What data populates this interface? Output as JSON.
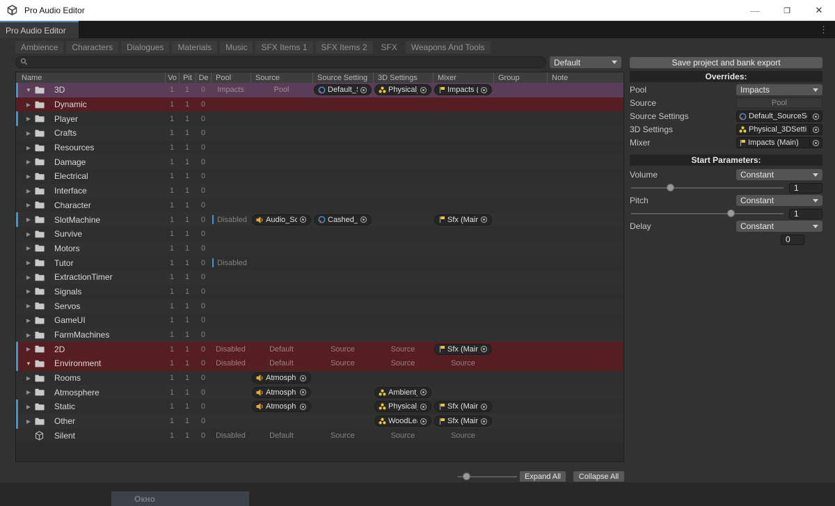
{
  "window": {
    "title": "Pro Audio Editor",
    "doc_tab": "Pro Audio Editor",
    "controls": {
      "minimize": "—",
      "maximize": "❐",
      "close": "✕",
      "menu": "⋮"
    }
  },
  "toolbar": {
    "categories": [
      "Ambience",
      "Characters",
      "Dialogues",
      "Materials",
      "Music",
      "SFX Items 1",
      "SFX Items 2",
      "SFX",
      "Weapons And Tools"
    ],
    "selected_category": "SFX",
    "preset": "Default",
    "search_value": ""
  },
  "table": {
    "columns": [
      "Name",
      "Vo",
      "Pit",
      "De",
      "Pool",
      "Source",
      "Source Setting",
      "3D Settings",
      "Mixer",
      "Group",
      "Note"
    ],
    "rows": [
      {
        "name": "3D",
        "icon": "folder",
        "arrow": "down",
        "bar": true,
        "bg": "sel",
        "vo": "1",
        "pit": "1",
        "de": "0",
        "pool": {
          "text": "Impacts"
        },
        "source": {
          "text": "Pool"
        },
        "srcset": {
          "obj": "Default_S",
          "icon": "scriptable"
        },
        "d3": {
          "obj": "Physical_",
          "icon": "molecule"
        },
        "mixer": {
          "obj": "Impacts (",
          "icon": "mixerflag"
        }
      },
      {
        "name": "Dynamic",
        "icon": "folder",
        "arrow": "right",
        "bar": false,
        "bg": "red",
        "vo": "1",
        "pit": "1",
        "de": "0"
      },
      {
        "name": "Player",
        "icon": "folder",
        "arrow": "right",
        "bar": true,
        "bg": "",
        "vo": "1",
        "pit": "1",
        "de": "0"
      },
      {
        "name": "Crafts",
        "icon": "folder",
        "arrow": "right",
        "bar": false,
        "bg": "",
        "vo": "1",
        "pit": "1",
        "de": "0"
      },
      {
        "name": "Resources",
        "icon": "folder",
        "arrow": "right",
        "bar": false,
        "bg": "",
        "vo": "1",
        "pit": "1",
        "de": "0"
      },
      {
        "name": "Damage",
        "icon": "folder",
        "arrow": "right",
        "bar": false,
        "bg": "",
        "vo": "1",
        "pit": "1",
        "de": "0"
      },
      {
        "name": "Electrical",
        "icon": "folder",
        "arrow": "right",
        "bar": false,
        "bg": "",
        "vo": "1",
        "pit": "1",
        "de": "0"
      },
      {
        "name": "Interface",
        "icon": "folder",
        "arrow": "right",
        "bar": false,
        "bg": "",
        "vo": "1",
        "pit": "1",
        "de": "0"
      },
      {
        "name": "Character",
        "icon": "folder",
        "arrow": "right",
        "bar": false,
        "bg": "",
        "vo": "1",
        "pit": "1",
        "de": "0"
      },
      {
        "name": "SlotMachine",
        "icon": "folder",
        "arrow": "right",
        "bar": true,
        "bg": "",
        "vo": "1",
        "pit": "1",
        "de": "0",
        "pool": {
          "text": "Disabled",
          "bar": true
        },
        "source": {
          "obj": "Audio_Sc",
          "icon": "speaker"
        },
        "srcset": {
          "obj": "Cashed_S",
          "icon": "scriptable"
        },
        "mixer": {
          "obj": "Sfx (Mair",
          "icon": "mixerflag"
        }
      },
      {
        "name": "Survive",
        "icon": "folder",
        "arrow": "right",
        "bar": false,
        "bg": "",
        "vo": "1",
        "pit": "1",
        "de": "0"
      },
      {
        "name": "Motors",
        "icon": "folder",
        "arrow": "right",
        "bar": false,
        "bg": "",
        "vo": "1",
        "pit": "1",
        "de": "0"
      },
      {
        "name": "Tutor",
        "icon": "folder",
        "arrow": "right",
        "bar": false,
        "bg": "",
        "vo": "1",
        "pit": "1",
        "de": "0",
        "pool": {
          "text": "Disabled",
          "bar": true
        }
      },
      {
        "name": "ExtractionTimer",
        "icon": "folder",
        "arrow": "right",
        "bar": false,
        "bg": "",
        "vo": "1",
        "pit": "1",
        "de": "0"
      },
      {
        "name": "Signals",
        "icon": "folder",
        "arrow": "right",
        "bar": false,
        "bg": "",
        "vo": "1",
        "pit": "1",
        "de": "0"
      },
      {
        "name": "Servos",
        "icon": "folder",
        "arrow": "right",
        "bar": false,
        "bg": "",
        "vo": "1",
        "pit": "1",
        "de": "0"
      },
      {
        "name": "GameUI",
        "icon": "folder",
        "arrow": "right",
        "bar": false,
        "bg": "",
        "vo": "1",
        "pit": "1",
        "de": "0"
      },
      {
        "name": "FarmMachines",
        "icon": "folder",
        "arrow": "right",
        "bar": false,
        "bg": "",
        "vo": "1",
        "pit": "1",
        "de": "0"
      },
      {
        "name": "2D",
        "icon": "folder",
        "arrow": "right",
        "bar": true,
        "bg": "red",
        "vo": "1",
        "pit": "1",
        "de": "0",
        "pool": {
          "text": "Disabled"
        },
        "source": {
          "text": "Default"
        },
        "srcset": {
          "text": "Source"
        },
        "d3": {
          "text": "Source"
        },
        "mixer": {
          "obj": "Sfx (Mair",
          "icon": "mixerflag"
        }
      },
      {
        "name": "Environment",
        "icon": "folder",
        "arrow": "down",
        "bar": true,
        "bg": "red",
        "vo": "1",
        "pit": "1",
        "de": "0",
        "pool": {
          "text": "Disabled"
        },
        "source": {
          "text": "Default"
        },
        "srcset": {
          "text": "Source"
        },
        "d3": {
          "text": "Source"
        },
        "mixer": {
          "text": "Source"
        }
      },
      {
        "name": "Rooms",
        "icon": "folder",
        "arrow": "right",
        "bar": false,
        "bg": "",
        "vo": "1",
        "pit": "1",
        "de": "0",
        "source": {
          "obj": "Atmosph",
          "icon": "speaker"
        }
      },
      {
        "name": "Atmosphere",
        "icon": "folder",
        "arrow": "right",
        "bar": false,
        "bg": "",
        "vo": "1",
        "pit": "1",
        "de": "0",
        "source": {
          "obj": "Atmosph",
          "icon": "speaker"
        },
        "d3": {
          "obj": "Ambient_",
          "icon": "molecule"
        }
      },
      {
        "name": "Static",
        "icon": "folder",
        "arrow": "right",
        "bar": true,
        "bg": "",
        "vo": "1",
        "pit": "1",
        "de": "0",
        "source": {
          "obj": "Atmosph",
          "icon": "speaker"
        },
        "d3": {
          "obj": "Physical_",
          "icon": "molecule"
        },
        "mixer": {
          "obj": "Sfx (Mair",
          "icon": "mixerflag"
        }
      },
      {
        "name": "Other",
        "icon": "folder",
        "arrow": "right",
        "bar": true,
        "bg": "",
        "vo": "1",
        "pit": "1",
        "de": "0",
        "d3": {
          "obj": "WoodLea",
          "icon": "molecule"
        },
        "mixer": {
          "obj": "Sfx (Mair",
          "icon": "mixerflag"
        }
      },
      {
        "name": "Silent",
        "icon": "cube",
        "arrow": "none",
        "bar": false,
        "bg": "",
        "vo": "1",
        "pit": "1",
        "de": "0",
        "pool": {
          "text": "Disabled"
        },
        "source": {
          "text": "Default"
        },
        "srcset": {
          "text": "Source"
        },
        "d3": {
          "text": "Source"
        },
        "mixer": {
          "text": "Source"
        }
      }
    ]
  },
  "footer": {
    "expand_label": "Expand All",
    "collapse_label": "Collapse All",
    "zoom_percent": 14
  },
  "inspector": {
    "save_button": "Save project and bank export",
    "overrides": {
      "title": "Overrides:",
      "fields": [
        {
          "label": "Pool",
          "type": "dropdown",
          "value": "Impacts"
        },
        {
          "label": "Source",
          "type": "disabled",
          "value": "Pool"
        },
        {
          "label": "Source Settings",
          "type": "object",
          "icon": "scriptable",
          "value": "Default_SourceSe"
        },
        {
          "label": "3D Settings",
          "type": "object",
          "icon": "molecule",
          "value": "Physical_3DSetti"
        },
        {
          "label": "Mixer",
          "type": "object",
          "icon": "mixerflag",
          "value": "Impacts (Main)"
        }
      ]
    },
    "start_parameters": {
      "title": "Start Parameters:",
      "params": [
        {
          "label": "Volume",
          "mode": "Constant",
          "value": "1",
          "slider": 26
        },
        {
          "label": "Pitch",
          "mode": "Constant",
          "value": "1",
          "slider": 65
        },
        {
          "label": "Delay",
          "mode": "Constant",
          "value": "0",
          "slider": null
        }
      ]
    }
  },
  "overlay": {
    "partial_button": "Окно"
  },
  "colors": {
    "selected_row": "#5b3d57",
    "warning_row": "#561d23",
    "override_bar": "#3798d4",
    "doc_tab_accent": "#4a87c0"
  }
}
